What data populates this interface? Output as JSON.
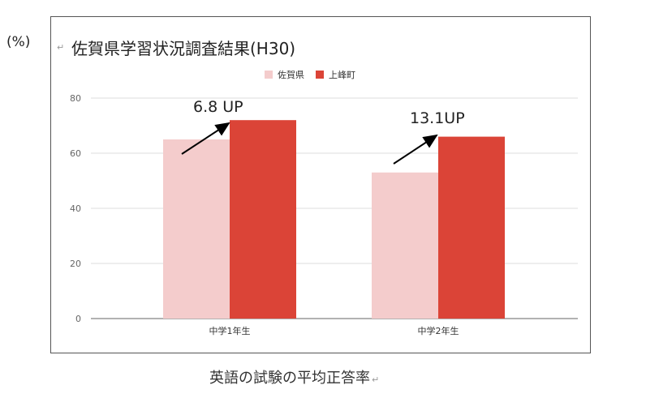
{
  "unit_label": "(%)",
  "caption": "英語の試験の平均正答率",
  "colors": {
    "series1": "#f4cccc",
    "series2": "#db4437",
    "grid": "#dddddd",
    "axis": "#666666",
    "arrow": "#000000"
  },
  "chart_data": {
    "type": "bar",
    "title": "佐賀県学習状況調査結果(H30)",
    "categories": [
      "中学1年生",
      "中学2年生"
    ],
    "series": [
      {
        "name": "佐賀県",
        "values": [
          65,
          53
        ]
      },
      {
        "name": "上峰町",
        "values": [
          72,
          66
        ]
      }
    ],
    "ylim": [
      0,
      80
    ],
    "yticks": [
      0,
      20,
      40,
      60,
      80
    ],
    "grid": true,
    "legend": "top-center",
    "annotations": [
      "6.8 UP",
      "13.1UP"
    ]
  }
}
